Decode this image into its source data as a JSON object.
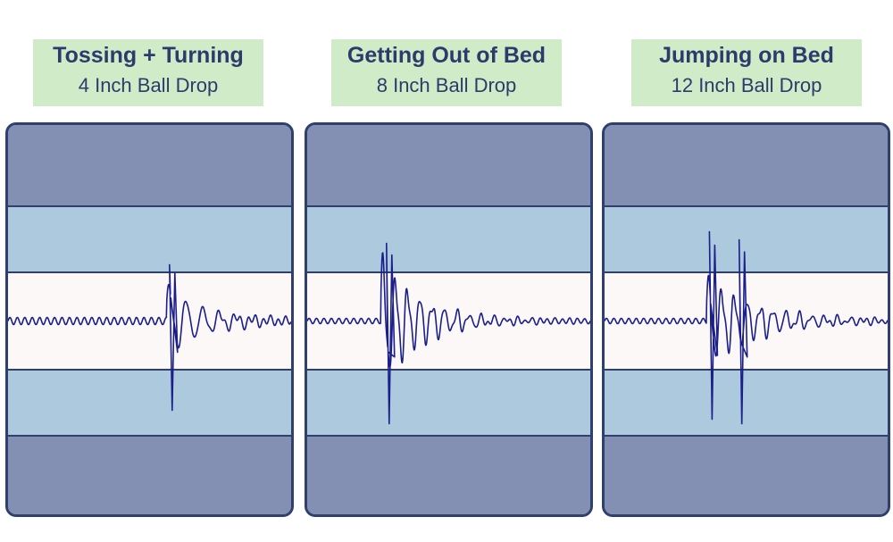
{
  "panels": [
    {
      "title": "Tossing + Turning",
      "subtitle": "4 Inch Ball Drop"
    },
    {
      "title": "Getting Out of Bed",
      "subtitle": "8 Inch Ball Drop"
    },
    {
      "title": "Jumping on Bed",
      "subtitle": "12 Inch Ball Drop"
    }
  ],
  "colors": {
    "waveform": "#1a1f8a",
    "outer_band": "#8390b4",
    "middle_band": "#adc9dd",
    "center_band": "#fcf8f8",
    "header_bg": "#d0ebc7",
    "text": "#2b3c6c"
  },
  "chart_data": [
    {
      "type": "line",
      "title": "Tossing + Turning",
      "subtitle": "4 Inch Ball Drop",
      "xlabel": "",
      "ylabel": "",
      "series": [
        {
          "baseline_amplitude": 0.04,
          "spikes": [
            {
              "t": 0.575,
              "min": -1.0,
              "max": 0.63
            }
          ],
          "oscillation": {
            "start": 0.56,
            "initial_amplitude": 0.38,
            "decay": 7.5,
            "cycles_per_width": 17
          }
        }
      ]
    },
    {
      "type": "line",
      "title": "Getting Out of Bed",
      "subtitle": "8 Inch Ball Drop",
      "xlabel": "",
      "ylabel": "",
      "series": [
        {
          "baseline_amplitude": 0.03,
          "spikes": [
            {
              "t": 0.285,
              "min": -1.15,
              "max": 0.87
            }
          ],
          "oscillation": {
            "start": 0.26,
            "initial_amplitude": 0.65,
            "decay": 7.0,
            "cycles_per_width": 23
          }
        }
      ]
    },
    {
      "type": "line",
      "title": "Jumping on Bed",
      "subtitle": "12 Inch Ball Drop",
      "xlabel": "",
      "ylabel": "",
      "series": [
        {
          "baseline_amplitude": 0.03,
          "spikes": [
            {
              "t": 0.375,
              "min": -1.1,
              "max": 1.0
            },
            {
              "t": 0.48,
              "min": -1.15,
              "max": 0.91
            }
          ],
          "oscillation": {
            "start": 0.36,
            "initial_amplitude": 0.45,
            "decay": 5.5,
            "cycles_per_width": 22
          }
        }
      ]
    }
  ]
}
